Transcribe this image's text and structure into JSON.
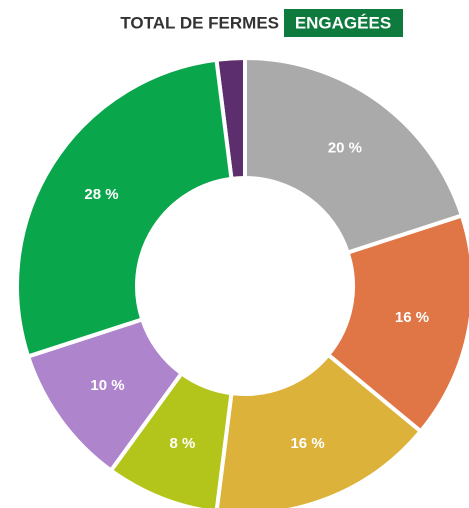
{
  "chart_data": {
    "type": "donut",
    "title": "TOTAL DE FERMES",
    "title_highlight": "ENGAGÉES",
    "values": [
      20,
      16,
      16,
      8,
      10,
      28,
      2
    ],
    "value_labels": [
      "20 %",
      "16 %",
      "16 %",
      "8 %",
      "10 %",
      "28 %",
      null
    ],
    "colors": [
      "#aaaaaa",
      "#e07546",
      "#ddb23a",
      "#b3c41a",
      "#ae85cc",
      "#0aa64c",
      "#5c2e6e"
    ]
  }
}
